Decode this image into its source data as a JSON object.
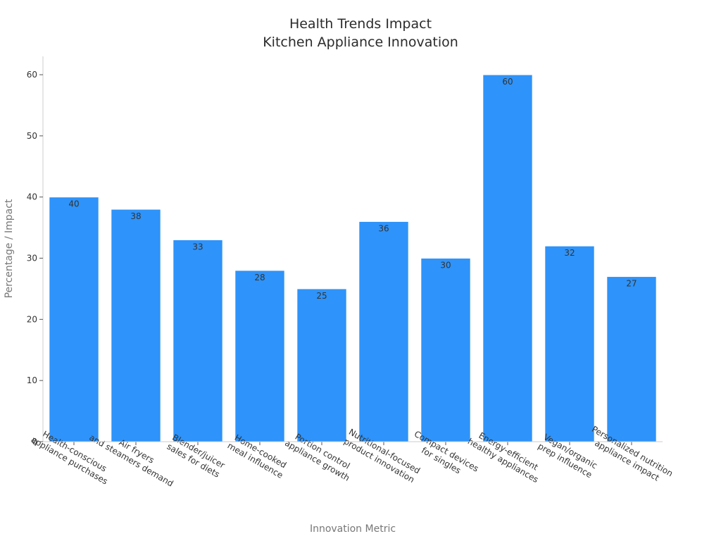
{
  "chart_data": {
    "type": "bar",
    "title_lines": [
      "Health Trends Impact",
      "Kitchen Appliance Innovation"
    ],
    "xlabel": "Innovation Metric",
    "ylabel": "Percentage / Impact",
    "ylim": [
      0,
      63
    ],
    "yticks": [
      0,
      10,
      20,
      30,
      40,
      50,
      60
    ],
    "grid": false,
    "legend": "none",
    "bar_color": "#2e93fa",
    "categories": [
      [
        "Health-conscious",
        "appliance purchases"
      ],
      [
        "Air fryers",
        "and steamers demand"
      ],
      [
        "Blender/juicer",
        "sales for diets"
      ],
      [
        "Home-cooked",
        "meal influence"
      ],
      [
        "Portion control",
        "appliance growth"
      ],
      [
        "Nutritional-focused",
        "product innovation"
      ],
      [
        "Compact devices",
        "for singles"
      ],
      [
        "Energy-efficient",
        "healthy appliances"
      ],
      [
        "Vegan/organic",
        "prep influence"
      ],
      [
        "Personalized nutrition",
        "appliance impact"
      ]
    ],
    "values": [
      40,
      38,
      33,
      28,
      25,
      36,
      30,
      60,
      32,
      27
    ]
  }
}
